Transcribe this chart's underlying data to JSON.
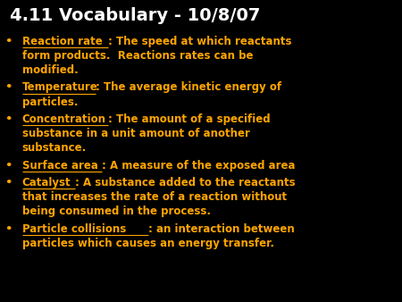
{
  "title": "4.11 Vocabulary - 10/8/07",
  "title_color": "#FFFFFF",
  "title_fontsize": 14,
  "background_color": "#000000",
  "orange": "#FFA500",
  "bullet_char": "•",
  "bullet_fontsize": 8.5,
  "figsize": [
    4.5,
    3.38
  ],
  "dpi": 100,
  "items": [
    {
      "term": "Reaction rate",
      "definition": ": The speed at which reactants\nform products.  Reactions rates can be\nmodified."
    },
    {
      "term": "Temperature",
      "definition": ": The average kinetic energy of\nparticles."
    },
    {
      "term": "Concentration",
      "definition": ": The amount of a specified\nsubstance in a unit amount of another\nsubstance."
    },
    {
      "term": "Surface area",
      "definition": ": A measure of the exposed area"
    },
    {
      "term": "Catalyst",
      "definition": ": A substance added to the reactants\nthat increases the rate of a reaction without\nbeing consumed in the process."
    },
    {
      "term": "Particle collisions",
      "definition": ": an interaction between\nparticles which causes an energy transfer."
    }
  ]
}
